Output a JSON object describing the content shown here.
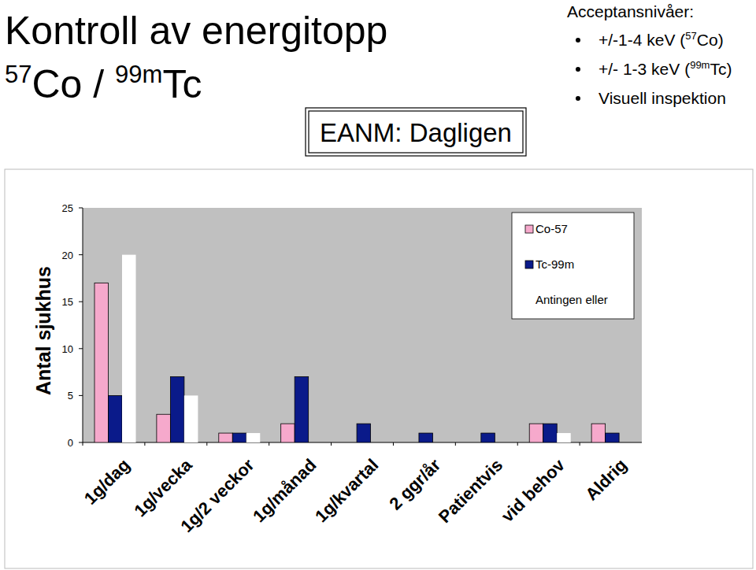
{
  "header": {
    "title": "Kontroll av energitopp",
    "subtitle": [
      {
        "text": "57",
        "sup": true
      },
      {
        "text": "Co / "
      },
      {
        "text": "99m",
        "sup": true
      },
      {
        "text": "Tc"
      }
    ],
    "badge": "EANM: Dagligen",
    "criteria_heading": "Acceptansnivåer:",
    "criteria": [
      [
        {
          "text": "+/-1-4 keV ("
        },
        {
          "text": "57",
          "sup": true
        },
        {
          "text": "Co)"
        }
      ],
      [
        {
          "text": "+/- 1-3 keV ("
        },
        {
          "text": "99m",
          "sup": true
        },
        {
          "text": "Tc)"
        }
      ],
      [
        {
          "text": "Visuell inspektion"
        }
      ]
    ]
  },
  "chart_data": {
    "type": "bar",
    "y_label": "Antal sjukhus",
    "categories": [
      "1g/dag",
      "1g/vecka",
      "1g/2 veckor",
      "1g/månad",
      "1g/kvartal",
      "2 ggr/år",
      "Patientvis",
      "vid behov",
      "Aldrig"
    ],
    "series": [
      {
        "name": "Co-57",
        "color": "#f6a9cc",
        "values": [
          17,
          3,
          1,
          2,
          0,
          0,
          0,
          2,
          2
        ]
      },
      {
        "name": "Tc-99m",
        "color": "#0a1a8a",
        "values": [
          5,
          7,
          1,
          7,
          2,
          1,
          1,
          2,
          1
        ]
      },
      {
        "name": "Antingen eller",
        "color": "#ffffff",
        "values": [
          20,
          5,
          1,
          0,
          0,
          0,
          0,
          1,
          0
        ]
      }
    ],
    "ylim": [
      0,
      25
    ],
    "yticks": [
      0,
      5,
      10,
      15,
      20,
      25
    ],
    "grid": false,
    "legend": "top-right"
  }
}
